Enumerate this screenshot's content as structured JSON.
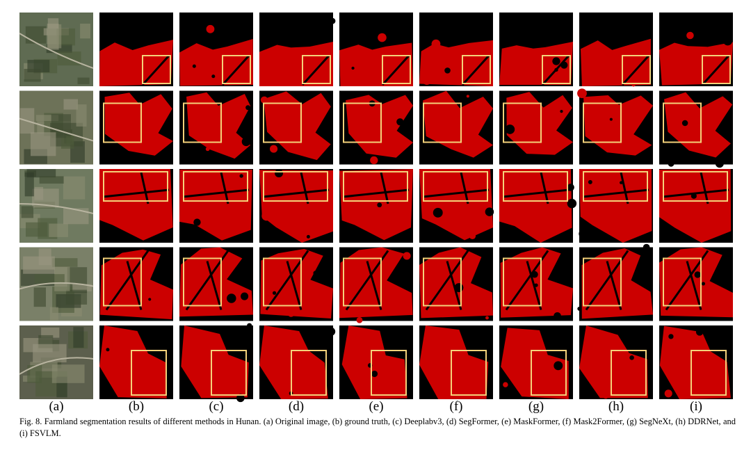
{
  "figure": {
    "column_labels": [
      "(a)",
      "(b)",
      "(c)",
      "(d)",
      "(e)",
      "(f)",
      "(g)",
      "(h)",
      "(i)"
    ],
    "caption": "Fig. 8.   Farmland segmentation results of different methods in Hunan. (a) Original image, (b) ground truth, (c) Deeplabv3, (d) SegFormer, (e) MaskFormer, (f) Mask2Former, (g) SegNeXt, (h) DDRNet, and (i) FSVLM."
  }
}
